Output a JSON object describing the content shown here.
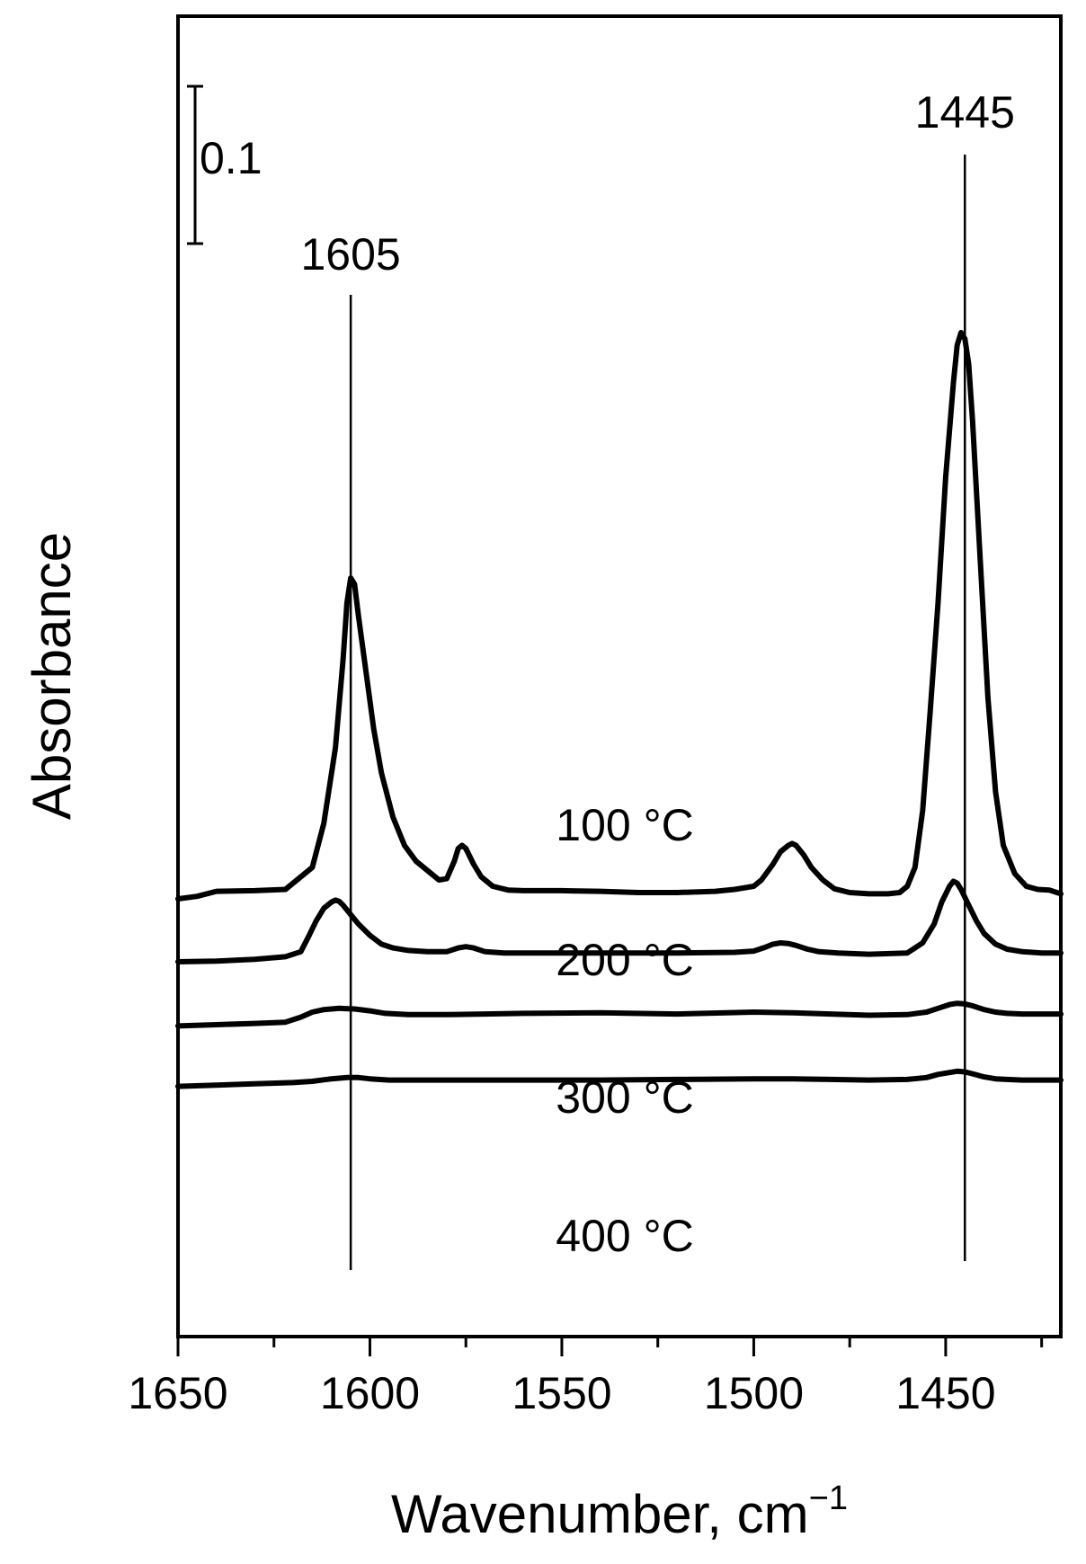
{
  "chart_data": {
    "type": "line",
    "xlabel": "Wavenumber, cm",
    "xlabel_superscript": "−1",
    "ylabel": "Absorbance",
    "xlim": [
      1650,
      1420
    ],
    "x_reversed": true,
    "x_major_ticks": [
      1650,
      1600,
      1550,
      1500,
      1450
    ],
    "x_minor_ticks": [
      1625,
      1575,
      1525,
      1475,
      1425
    ],
    "x_tick_labels": [
      "1650",
      "1600",
      "1550",
      "1500",
      "1450"
    ],
    "y_ticks_shown": false,
    "grid": false,
    "line_color": "#000000",
    "scale_bar": {
      "label": "0.1",
      "value": 0.1
    },
    "annotations": [
      {
        "label": "1605",
        "x": 1605
      },
      {
        "label": "1445",
        "x": 1445
      }
    ],
    "series": [
      {
        "name": "100 °C",
        "baseline": 0.08,
        "x": [
          1650,
          1645,
          1640,
          1630,
          1622,
          1618,
          1615,
          1612,
          1609,
          1607,
          1606,
          1605,
          1604,
          1603,
          1601,
          1599,
          1597,
          1594,
          1591,
          1588,
          1585,
          1582,
          1580,
          1578,
          1577,
          1576,
          1575,
          1573,
          1571,
          1568,
          1564,
          1560,
          1550,
          1540,
          1530,
          1520,
          1510,
          1505,
          1500,
          1498,
          1495,
          1493,
          1491,
          1490,
          1489,
          1487,
          1485,
          1482,
          1479,
          1475,
          1470,
          1465,
          1462,
          1460,
          1458,
          1456,
          1454,
          1452,
          1450,
          1448,
          1447,
          1446,
          1445,
          1444,
          1443,
          1441,
          1439,
          1437,
          1435,
          1432,
          1429,
          1426,
          1423,
          1420
        ],
        "y": [
          0.08,
          0.084,
          0.092,
          0.093,
          0.095,
          0.115,
          0.13,
          0.2,
          0.32,
          0.46,
          0.55,
          0.59,
          0.58,
          0.53,
          0.44,
          0.35,
          0.28,
          0.21,
          0.165,
          0.14,
          0.125,
          0.11,
          0.112,
          0.14,
          0.16,
          0.165,
          0.16,
          0.135,
          0.115,
          0.1,
          0.094,
          0.093,
          0.093,
          0.092,
          0.09,
          0.09,
          0.092,
          0.095,
          0.1,
          0.11,
          0.135,
          0.155,
          0.165,
          0.168,
          0.165,
          0.15,
          0.13,
          0.11,
          0.096,
          0.09,
          0.088,
          0.088,
          0.09,
          0.1,
          0.13,
          0.22,
          0.38,
          0.55,
          0.75,
          0.9,
          0.96,
          0.98,
          0.97,
          0.93,
          0.84,
          0.62,
          0.4,
          0.25,
          0.165,
          0.12,
          0.1,
          0.095,
          0.094,
          0.088
        ]
      },
      {
        "name": "200 °C",
        "baseline": -0.02,
        "x": [
          1650,
          1640,
          1630,
          1622,
          1618,
          1616,
          1614,
          1612,
          1610,
          1609,
          1608,
          1607,
          1605,
          1603,
          1600,
          1597,
          1594,
          1590,
          1585,
          1580,
          1577,
          1575,
          1573,
          1570,
          1565,
          1560,
          1540,
          1520,
          1505,
          1500,
          1497,
          1495,
          1493,
          1491,
          1489,
          1486,
          1483,
          1478,
          1470,
          1460,
          1456,
          1453,
          1451,
          1449,
          1448,
          1447,
          1446,
          1444,
          1442,
          1440,
          1437,
          1434,
          1430,
          1425,
          1420
        ],
        "y": [
          -0.02,
          -0.019,
          -0.016,
          -0.012,
          -0.004,
          0.02,
          0.045,
          0.065,
          0.075,
          0.078,
          0.076,
          0.07,
          0.055,
          0.04,
          0.022,
          0.008,
          0.002,
          -0.002,
          -0.004,
          -0.004,
          0.002,
          0.004,
          0.002,
          -0.004,
          -0.006,
          -0.006,
          -0.006,
          -0.006,
          -0.005,
          -0.003,
          0.003,
          0.008,
          0.01,
          0.009,
          0.006,
          0.0,
          -0.004,
          -0.006,
          -0.008,
          -0.006,
          0.01,
          0.04,
          0.075,
          0.1,
          0.108,
          0.105,
          0.095,
          0.07,
          0.045,
          0.025,
          0.008,
          0.0,
          -0.004,
          -0.006,
          -0.006
        ]
      },
      {
        "name": "300 °C",
        "baseline": -0.122,
        "x": [
          1650,
          1640,
          1630,
          1622,
          1618,
          1615,
          1612,
          1608,
          1604,
          1600,
          1596,
          1590,
          1580,
          1570,
          1560,
          1540,
          1520,
          1500,
          1490,
          1480,
          1470,
          1460,
          1455,
          1452,
          1449,
          1447,
          1445,
          1443,
          1440,
          1437,
          1434,
          1430,
          1425,
          1420
        ],
        "y": [
          -0.122,
          -0.12,
          -0.118,
          -0.116,
          -0.108,
          -0.1,
          -0.096,
          -0.094,
          -0.095,
          -0.098,
          -0.102,
          -0.104,
          -0.104,
          -0.103,
          -0.102,
          -0.101,
          -0.103,
          -0.1,
          -0.101,
          -0.103,
          -0.105,
          -0.104,
          -0.1,
          -0.094,
          -0.088,
          -0.086,
          -0.087,
          -0.09,
          -0.096,
          -0.1,
          -0.102,
          -0.103,
          -0.103,
          -0.103
        ]
      },
      {
        "name": "400 °C",
        "baseline": -0.218,
        "x": [
          1650,
          1640,
          1630,
          1620,
          1615,
          1610,
          1606,
          1603,
          1600,
          1595,
          1590,
          1580,
          1560,
          1540,
          1520,
          1500,
          1490,
          1480,
          1470,
          1460,
          1455,
          1452,
          1449,
          1447,
          1445,
          1443,
          1440,
          1437,
          1434,
          1430,
          1425,
          1420
        ],
        "y": [
          -0.218,
          -0.216,
          -0.214,
          -0.212,
          -0.21,
          -0.206,
          -0.204,
          -0.204,
          -0.206,
          -0.208,
          -0.208,
          -0.208,
          -0.208,
          -0.208,
          -0.207,
          -0.206,
          -0.206,
          -0.207,
          -0.208,
          -0.207,
          -0.204,
          -0.199,
          -0.196,
          -0.194,
          -0.195,
          -0.198,
          -0.203,
          -0.206,
          -0.207,
          -0.208,
          -0.208,
          -0.208
        ]
      }
    ]
  }
}
